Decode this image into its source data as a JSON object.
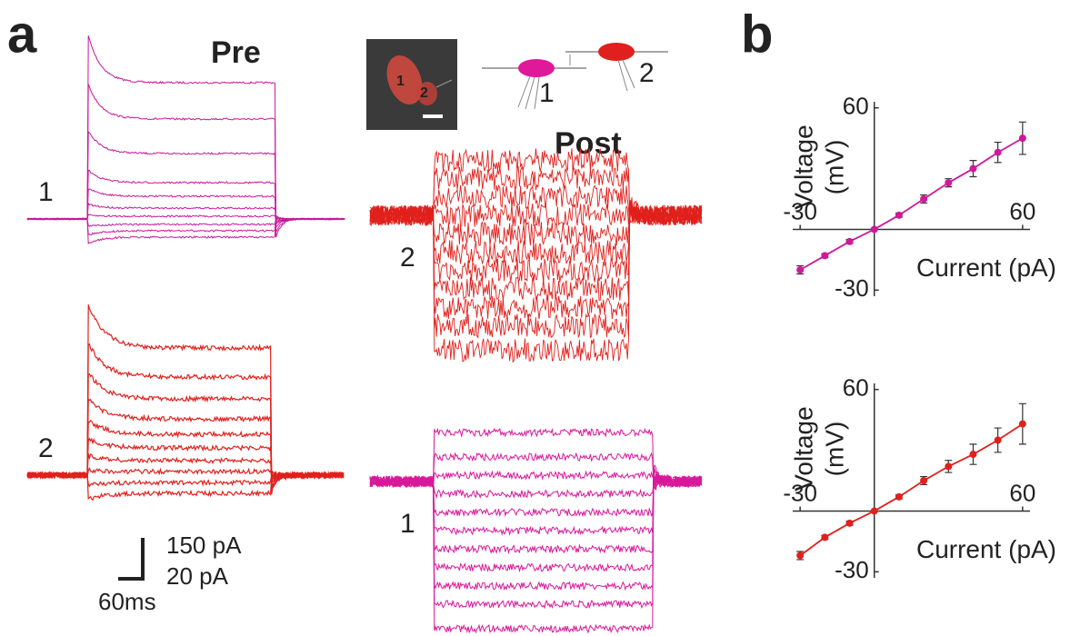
{
  "figure": {
    "panel_labels": [
      "a",
      "b"
    ],
    "pre": "Pre",
    "post": "Post",
    "trace_labels": [
      "1",
      "2",
      "2",
      "1"
    ],
    "image_labels": [
      "1",
      "2"
    ],
    "diagram_labels": [
      "1",
      "2"
    ],
    "scale_bar": [
      "150 pA",
      "20 pA",
      "60ms"
    ]
  },
  "chart_data": [
    {
      "type": "line",
      "x_label": "Current (pA)",
      "y_label": [
        "Voltage",
        "(mV)"
      ],
      "x": [
        -30,
        -20,
        -10,
        0,
        10,
        20,
        30,
        40,
        50,
        60
      ],
      "series": [
        {
          "color": "#d0189a",
          "values": [
            -20,
            -13,
            -6,
            0,
            7,
            15,
            23,
            30,
            38,
            45
          ],
          "errors": [
            2,
            1,
            1,
            0,
            1,
            2,
            2,
            4,
            5,
            8
          ]
        }
      ],
      "xlim": [
        -33,
        63
      ],
      "ylim": [
        -33,
        63
      ],
      "xticks": [
        -30,
        60
      ],
      "yticks": [
        -30,
        60
      ]
    },
    {
      "type": "line",
      "x_label": "Current (pA)",
      "y_label": [
        "Voltage",
        "(mV)"
      ],
      "x": [
        -30,
        -20,
        -10,
        0,
        10,
        20,
        30,
        40,
        50,
        60
      ],
      "series": [
        {
          "color": "#e0201c",
          "values": [
            -22,
            -13,
            -6,
            0,
            7,
            15,
            22,
            28,
            35,
            43
          ],
          "errors": [
            2,
            1,
            1,
            0,
            1,
            2,
            3,
            5,
            6,
            10
          ]
        }
      ],
      "xlim": [
        -33,
        63
      ],
      "ylim": [
        -33,
        63
      ],
      "xticks": [
        -30,
        60
      ],
      "yticks": [
        -30,
        60
      ]
    }
  ]
}
